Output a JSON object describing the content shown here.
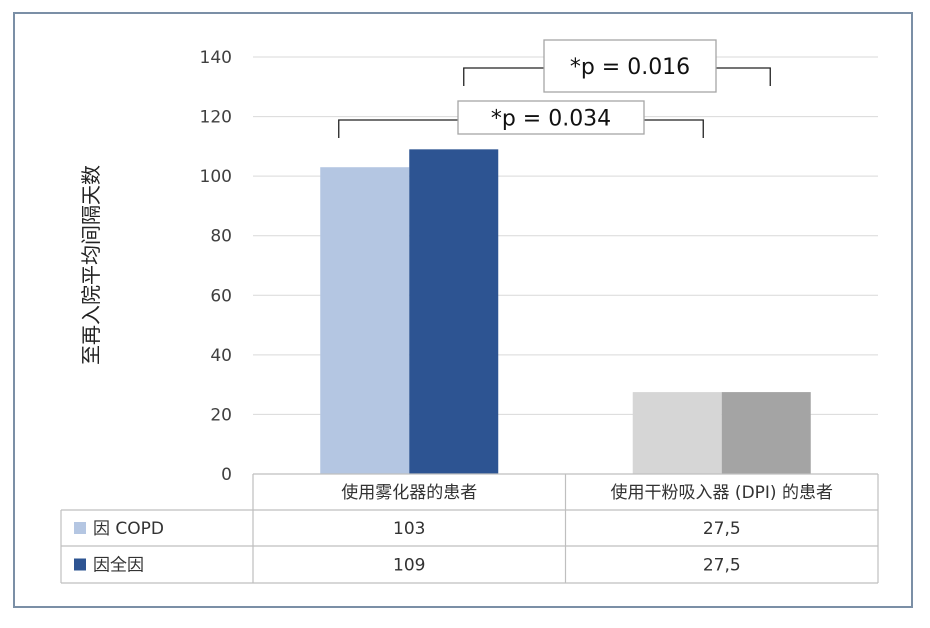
{
  "chart_data": {
    "type": "bar",
    "ylabel": "至再入院平均间隔天数",
    "ylim": [
      0,
      140
    ],
    "yticks": [
      0,
      20,
      40,
      60,
      80,
      100,
      120,
      140
    ],
    "grid": true,
    "categories": [
      "使用雾化器的患者",
      "使用干粉吸入器 (DPI) 的患者"
    ],
    "series": [
      {
        "name": "因 COPD",
        "values": [
          103,
          27.5
        ],
        "value_labels": [
          "103",
          "27,5"
        ],
        "colors": [
          "#b4c6e2",
          "#d6d6d6"
        ]
      },
      {
        "name": "因全因",
        "values": [
          109,
          27.5
        ],
        "value_labels": [
          "109",
          "27,5"
        ],
        "colors": [
          "#2d5492",
          "#a4a4a4"
        ]
      }
    ],
    "legend_placement": "data-table",
    "annotations": [
      {
        "text": "*p = 0.034"
      },
      {
        "text": "*p = 0.016"
      }
    ]
  }
}
